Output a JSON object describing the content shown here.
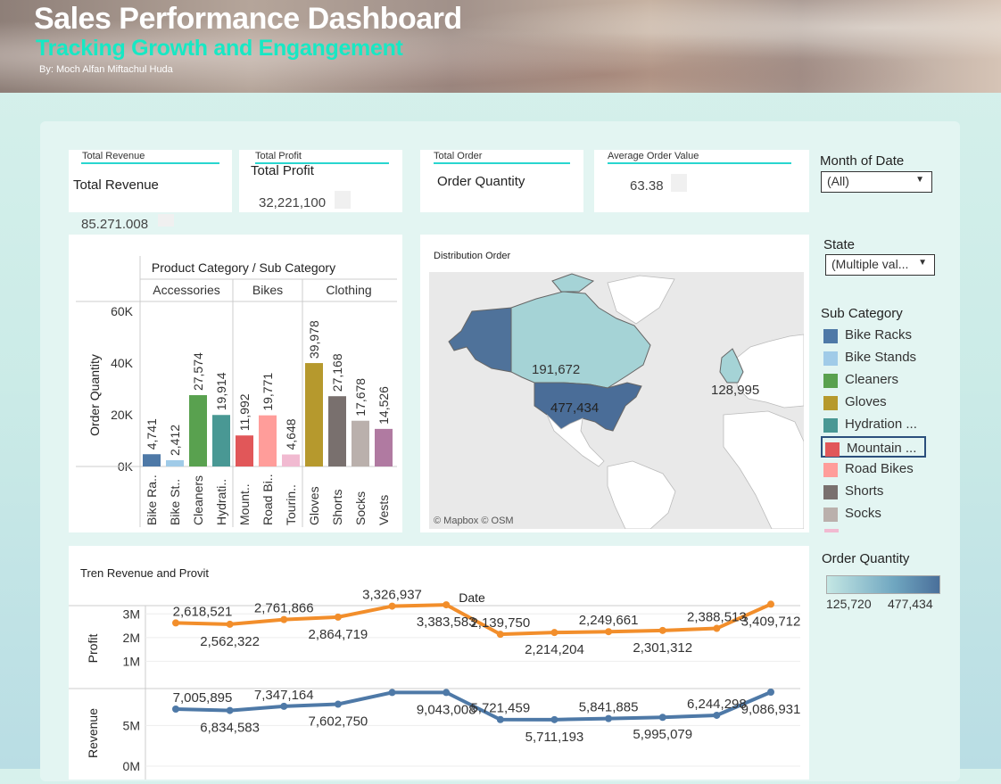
{
  "header": {
    "title": "Sales Performance Dashboard",
    "subtitle": "Tracking Growth and Engangement",
    "byline": "By: Moch Alfan Miftachul Huda"
  },
  "kpis": {
    "revenue": {
      "label": "Total Revenue",
      "title": "Total Revenue",
      "value": "85,271,008"
    },
    "profit": {
      "label": "Total Profit",
      "title": "Total Profit",
      "value": "32,221,100"
    },
    "order": {
      "label": "Total Order",
      "title": "Order Quantity",
      "value": ""
    },
    "aov": {
      "label": "Average Order Value",
      "title": "",
      "value": "63.38"
    }
  },
  "filters": {
    "month": {
      "title": "Month of Date",
      "value": "(All)"
    },
    "state": {
      "title": "State",
      "value": "(Multiple val..."
    },
    "subcat": {
      "title": "Sub Category",
      "items": [
        {
          "label": "Bike Racks",
          "color": "#4e79a7"
        },
        {
          "label": "Bike Stands",
          "color": "#a0cbe8"
        },
        {
          "label": "Cleaners",
          "color": "#59a14f"
        },
        {
          "label": "Gloves",
          "color": "#b6992d"
        },
        {
          "label": "Hydration ...",
          "color": "#499894"
        },
        {
          "label": "Mountain ...",
          "color": "#e15759",
          "selected": true
        },
        {
          "label": "Road Bikes",
          "color": "#ff9d9a"
        },
        {
          "label": "Shorts",
          "color": "#79706e"
        },
        {
          "label": "Socks",
          "color": "#bab0ac"
        }
      ]
    },
    "order_quantity": {
      "title": "Order Quantity",
      "min": "125,720",
      "max": "477,434"
    }
  },
  "map": {
    "title": "Distribution Order",
    "labels": {
      "canada": "191,672",
      "usa": "477,434",
      "europe": "128,995"
    },
    "attribution": "© Mapbox  © OSM"
  },
  "chart_data": [
    {
      "type": "bar",
      "title": "Product Category / Sub Category",
      "ylabel": "Order Quantity",
      "ylim": [
        0,
        60000
      ],
      "yticks": [
        "0K",
        "20K",
        "40K",
        "60K"
      ],
      "groups": [
        {
          "name": "Accessories",
          "items": [
            {
              "label": "Bike Ra..",
              "value": 4741,
              "text": "4,741",
              "color": "#4e79a7"
            },
            {
              "label": "Bike St..",
              "value": 2412,
              "text": "2,412",
              "color": "#a0cbe8"
            },
            {
              "label": "Cleaners",
              "value": 27574,
              "text": "27,574",
              "color": "#59a14f"
            },
            {
              "label": "Hydrati..",
              "value": 19914,
              "text": "19,914",
              "color": "#499894"
            }
          ]
        },
        {
          "name": "Bikes",
          "items": [
            {
              "label": "Mount..",
              "value": 11992,
              "text": "11,992",
              "color": "#e15759"
            },
            {
              "label": "Road Bi..",
              "value": 19771,
              "text": "19,771",
              "color": "#ff9d9a"
            },
            {
              "label": "Tourin..",
              "value": 4648,
              "text": "4,648",
              "color": "#f1bad1"
            }
          ]
        },
        {
          "name": "Clothing",
          "items": [
            {
              "label": "Gloves",
              "value": 39978,
              "text": "39,978",
              "color": "#b6992d"
            },
            {
              "label": "Shorts",
              "value": 27168,
              "text": "27,168",
              "color": "#79706e"
            },
            {
              "label": "Socks",
              "value": 17678,
              "text": "17,678",
              "color": "#bab0ac"
            },
            {
              "label": "Vests",
              "value": 14526,
              "text": "14,526",
              "color": "#b07aa1"
            }
          ]
        }
      ]
    },
    {
      "type": "line",
      "title": "Tren Revenue and Provit",
      "xlabel": "Date",
      "series": [
        {
          "name": "Profit",
          "color": "#f28e2b",
          "yticks": [
            "1M",
            "2M",
            "3M"
          ],
          "ylim": [
            0,
            3500000
          ],
          "values": [
            2618521,
            2562322,
            2761866,
            2864719,
            3326937,
            3383583,
            2139750,
            2214204,
            2249661,
            2301312,
            2388513,
            3409712
          ],
          "labels": [
            "2,618,521",
            "2,562,322",
            "2,761,866",
            "2,864,719",
            "3,326,937",
            "3,383,583",
            "2,139,750",
            "2,214,204",
            "2,249,661",
            "2,301,312",
            "2,388,513",
            "3,409,712"
          ]
        },
        {
          "name": "Revenue",
          "color": "#4e79a7",
          "yticks": [
            "0M",
            "5M"
          ],
          "ylim": [
            0,
            10000000
          ],
          "values": [
            7005895,
            6834583,
            7347164,
            7602750,
            9043008,
            9043008,
            5721459,
            5711193,
            5841885,
            5995079,
            6244298,
            9086931
          ],
          "labels": [
            "7,005,895",
            "6,834,583",
            "7,347,164",
            "7,602,750",
            "",
            "9,043,008",
            "5,721,459",
            "5,711,193",
            "5,841,885",
            "5,995,079",
            "6,244,298",
            "9,086,931"
          ]
        }
      ]
    }
  ]
}
